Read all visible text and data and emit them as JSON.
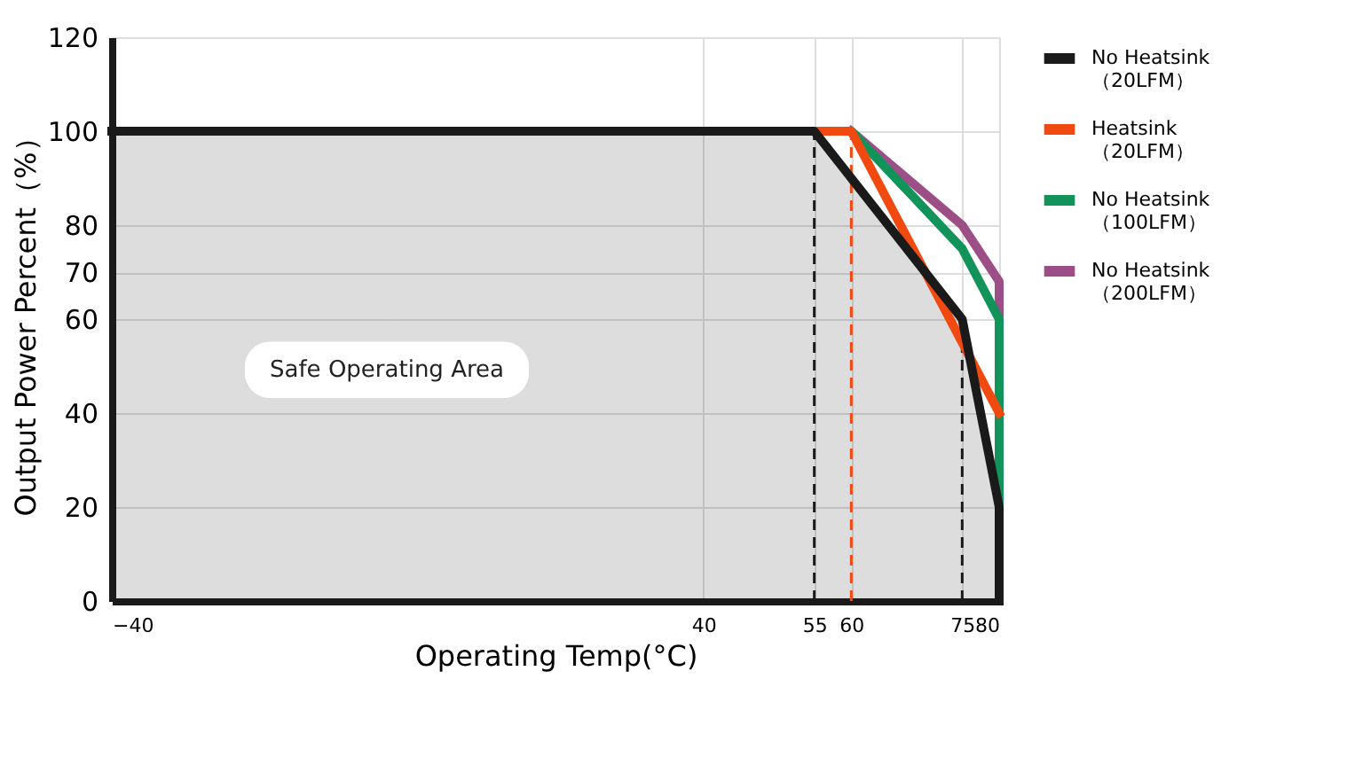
{
  "chart_data": {
    "type": "line",
    "xlabel": "Operating Temp(°C)",
    "ylabel": "Output Power Percent（%）",
    "xlim": [
      -40,
      80
    ],
    "xticks": [
      -40,
      40,
      55,
      60,
      75,
      80
    ],
    "ylim": [
      0,
      120
    ],
    "yticks": [
      0,
      20,
      40,
      60,
      70,
      80,
      100,
      120
    ],
    "grid": true,
    "legend": "right",
    "line_style": "solid",
    "marker": "none",
    "series": [
      {
        "name": "No Heatsink\n（20LFM）",
        "color": "#1a1a1a",
        "type": "area",
        "x": [
          -40,
          55,
          75,
          80,
          80
        ],
        "values": [
          100,
          100,
          60,
          20,
          0
        ]
      },
      {
        "name": "Heatsink\n（20LFM）",
        "color": "#f04a10",
        "x": [
          55,
          60,
          80
        ],
        "values": [
          100,
          100,
          40
        ]
      },
      {
        "name": "No Heatsink\n（100LFM）",
        "color": "#11935a",
        "x": [
          55,
          60,
          75,
          80,
          80
        ],
        "values": [
          100,
          100,
          75,
          60,
          20
        ]
      },
      {
        "name": "No Heatsink\n（200LFM）",
        "color": "#9b4f86",
        "x": [
          60,
          75,
          80,
          80
        ],
        "values": [
          100,
          80,
          68,
          60
        ]
      }
    ],
    "ref_lines": [
      {
        "axis": "x",
        "value": 55,
        "color": "#1a1a1a",
        "line_style": "dashed"
      },
      {
        "axis": "x",
        "value": 60,
        "color": "#f04a10",
        "line_style": "dashed"
      },
      {
        "axis": "x",
        "value": 75,
        "color": "#1a1a1a",
        "line_style": "dashed"
      }
    ],
    "annotations": [
      "Safe Operating Area"
    ]
  }
}
